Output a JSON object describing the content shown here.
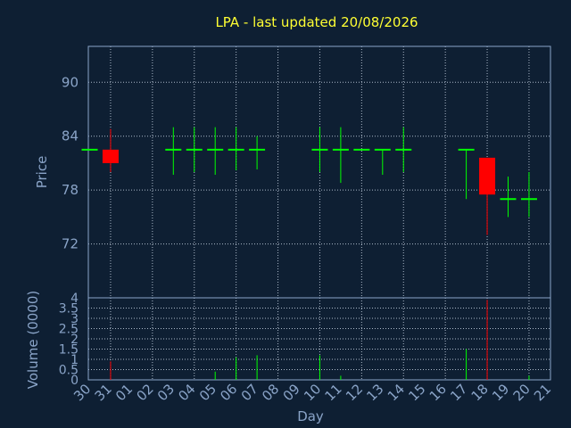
{
  "chart_data": {
    "type": "candlestick",
    "title": "LPA - last updated 20/08/2026",
    "xlabel": "Day",
    "ylabel": "Price",
    "volume_label": "Volume (0000)",
    "x_ticks": [
      "30",
      "31",
      "01",
      "02",
      "03",
      "04",
      "05",
      "06",
      "07",
      "08",
      "09",
      "10",
      "11",
      "12",
      "13",
      "14",
      "15",
      "16",
      "17",
      "18",
      "19",
      "20",
      "21"
    ],
    "price_ticks": [
      72,
      78,
      84,
      90
    ],
    "price_range": [
      66,
      94
    ],
    "volume_ticks": [
      0,
      0.5,
      1,
      1.5,
      2,
      2.5,
      3,
      3.5,
      4
    ],
    "volume_tick_labels": [
      "0",
      "0.5",
      "1",
      "1.5",
      "2",
      "2.5",
      "3",
      "3.5",
      "4"
    ],
    "volume_range": [
      0,
      4
    ],
    "grid": true,
    "colors": {
      "up": "#00ff00",
      "down": "#ff0000",
      "title": "#ffff33",
      "axis": "#8aa4c8",
      "background": "#0e1f33"
    },
    "candles": [
      {
        "day": "30",
        "open": 82.5,
        "high": 82.5,
        "low": 82.5,
        "close": 82.5,
        "volume": 0
      },
      {
        "day": "31",
        "open": 82.5,
        "high": 84.8,
        "low": 80.0,
        "close": 81.0,
        "volume": 0.9
      },
      {
        "day": "03",
        "open": 82.5,
        "high": 85.0,
        "low": 79.7,
        "close": 82.5,
        "volume": 0
      },
      {
        "day": "04",
        "open": 82.5,
        "high": 85.0,
        "low": 80.0,
        "close": 82.5,
        "volume": 0
      },
      {
        "day": "05",
        "open": 82.5,
        "high": 85.0,
        "low": 79.7,
        "close": 82.5,
        "volume": 0.4
      },
      {
        "day": "06",
        "open": 82.5,
        "high": 85.0,
        "low": 80.2,
        "close": 82.5,
        "volume": 1.1
      },
      {
        "day": "07",
        "open": 82.5,
        "high": 84.0,
        "low": 80.3,
        "close": 82.5,
        "volume": 1.2
      },
      {
        "day": "10",
        "open": 82.5,
        "high": 85.0,
        "low": 80.0,
        "close": 82.5,
        "volume": 1.2
      },
      {
        "day": "11",
        "open": 82.5,
        "high": 85.0,
        "low": 78.8,
        "close": 82.5,
        "volume": 0.2
      },
      {
        "day": "12",
        "open": 82.5,
        "high": 82.5,
        "low": 82.5,
        "close": 82.5,
        "volume": 0
      },
      {
        "day": "13",
        "open": 82.5,
        "high": 82.5,
        "low": 79.7,
        "close": 82.5,
        "volume": 0
      },
      {
        "day": "14",
        "open": 82.5,
        "high": 85.0,
        "low": 80.0,
        "close": 82.5,
        "volume": 0
      },
      {
        "day": "17",
        "open": 82.5,
        "high": 82.5,
        "low": 77.0,
        "close": 82.5,
        "volume": 1.5
      },
      {
        "day": "18",
        "open": 81.6,
        "high": 81.6,
        "low": 73.0,
        "close": 77.5,
        "volume": 3.9
      },
      {
        "day": "19",
        "open": 77.0,
        "high": 79.5,
        "low": 75.0,
        "close": 77.0,
        "volume": 0
      },
      {
        "day": "20",
        "open": 77.0,
        "high": 80.0,
        "low": 75.0,
        "close": 77.0,
        "volume": 0.2
      }
    ]
  }
}
